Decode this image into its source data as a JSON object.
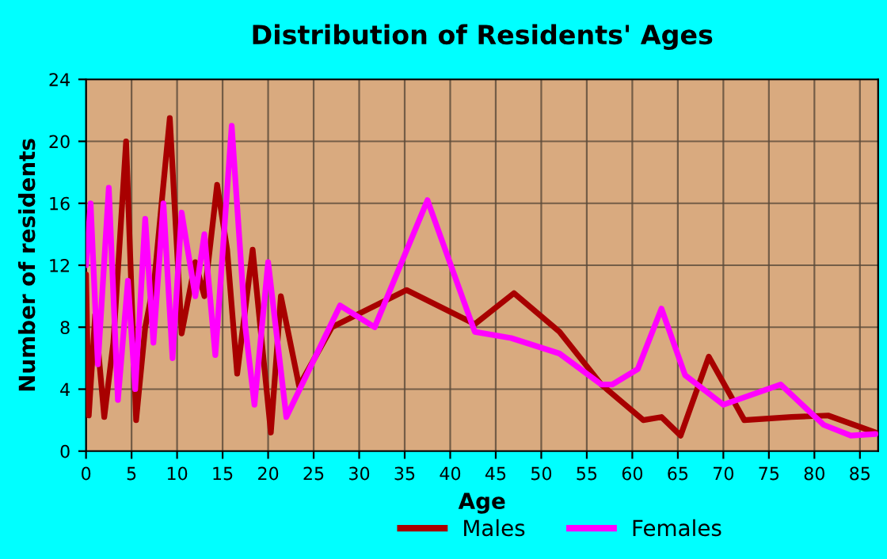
{
  "chart_data": {
    "type": "line",
    "title": "Distribution of Residents' Ages",
    "xlabel": "Age",
    "ylabel": "Number of residents",
    "xlim": [
      0,
      87
    ],
    "xticks": [
      0,
      5,
      10,
      15,
      20,
      25,
      30,
      35,
      40,
      45,
      50,
      55,
      60,
      65,
      70,
      75,
      80,
      85
    ],
    "ylim": [
      0,
      24
    ],
    "yticks": [
      0,
      4,
      8,
      12,
      16,
      20,
      24
    ],
    "grid": true,
    "legend": "bottom",
    "series": [
      {
        "name": "Males",
        "color": "#a80000",
        "x": [
          0,
          0.3,
          1,
          2,
          3,
          4.4,
          5.5,
          6.5,
          7.5,
          8.3,
          9.2,
          10.5,
          12,
          13,
          14.4,
          15.5,
          16.6,
          18.3,
          20.3,
          21.4,
          23.4,
          27,
          35.2,
          42.7,
          47,
          52,
          56.6,
          61.2,
          63.2,
          65.3,
          68.4,
          72.3,
          77.5,
          81.5,
          86.7
        ],
        "values": [
          11.4,
          2.3,
          8.8,
          2.2,
          7,
          20,
          2,
          8,
          11,
          16,
          21.5,
          7.6,
          12.2,
          10,
          17.2,
          13,
          5,
          13,
          1.2,
          10,
          4.2,
          8,
          10.4,
          8.2,
          10.2,
          7.7,
          4.3,
          2,
          2.2,
          1,
          6.1,
          2,
          2.2,
          2.3,
          1.2
        ]
      },
      {
        "name": "Females",
        "color": "#ff00ff",
        "x": [
          0,
          0.5,
          1.3,
          2.5,
          3.5,
          4.6,
          5.4,
          6.5,
          7.4,
          8.5,
          9.5,
          10.5,
          12,
          13,
          14.2,
          16,
          17.5,
          18.5,
          20,
          22,
          27.9,
          31.7,
          37.5,
          42.7,
          46.7,
          52,
          56.6,
          57.8,
          60.6,
          63.2,
          65.8,
          70,
          76.3,
          81,
          84,
          86.7
        ],
        "values": [
          12,
          16,
          5.6,
          17,
          3.3,
          11,
          4,
          15,
          7,
          16,
          6,
          15.4,
          10,
          14,
          6.2,
          21,
          8,
          3,
          12.2,
          2.2,
          9.4,
          8,
          16.2,
          7.7,
          7.3,
          6.3,
          4.3,
          4.3,
          5.3,
          9.2,
          4.9,
          3,
          4.3,
          1.7,
          1,
          1.1
        ]
      }
    ]
  }
}
